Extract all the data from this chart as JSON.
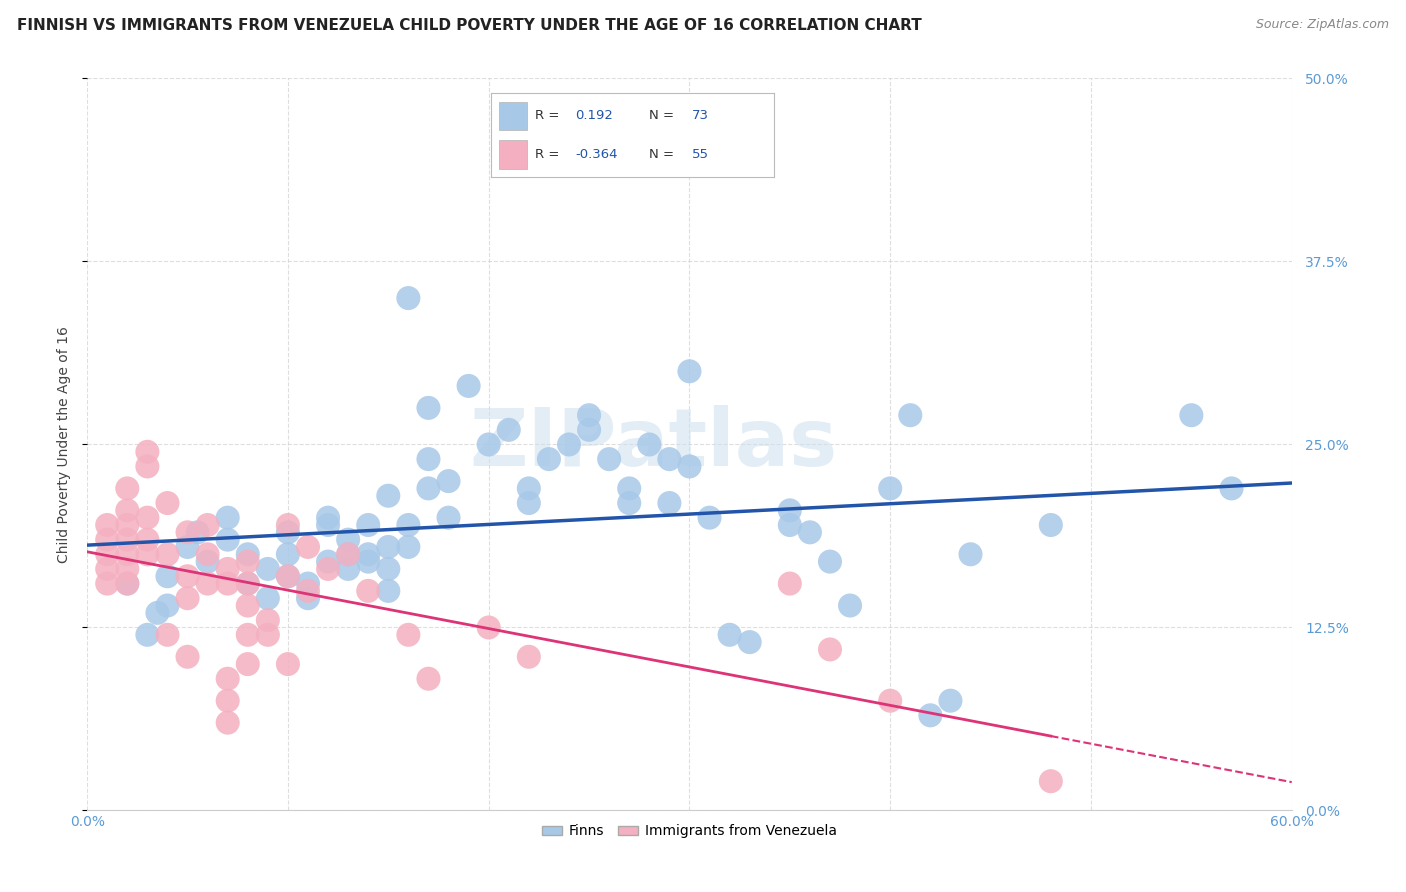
{
  "title": "FINNISH VS IMMIGRANTS FROM VENEZUELA CHILD POVERTY UNDER THE AGE OF 16 CORRELATION CHART",
  "source": "Source: ZipAtlas.com",
  "ylabel": "Child Poverty Under the Age of 16",
  "xlim": [
    0.0,
    0.6
  ],
  "ylim": [
    0.0,
    0.5
  ],
  "blue_R": 0.192,
  "blue_N": 73,
  "pink_R": -0.364,
  "pink_N": 55,
  "blue_color": "#a8c8e8",
  "pink_color": "#f4b0c0",
  "blue_line_color": "#2255aa",
  "pink_line_color": "#dd3377",
  "legend_value_color": "#2255aa",
  "right_tick_color": "#5b9bd5",
  "grid_color": "#d0d0d0",
  "background_color": "#ffffff",
  "watermark": "ZIPatlas",
  "blue_scatter": [
    [
      0.02,
      0.155
    ],
    [
      0.03,
      0.12
    ],
    [
      0.035,
      0.135
    ],
    [
      0.04,
      0.16
    ],
    [
      0.04,
      0.14
    ],
    [
      0.05,
      0.18
    ],
    [
      0.055,
      0.19
    ],
    [
      0.06,
      0.17
    ],
    [
      0.07,
      0.2
    ],
    [
      0.07,
      0.185
    ],
    [
      0.08,
      0.175
    ],
    [
      0.08,
      0.155
    ],
    [
      0.09,
      0.165
    ],
    [
      0.09,
      0.145
    ],
    [
      0.1,
      0.19
    ],
    [
      0.1,
      0.175
    ],
    [
      0.1,
      0.16
    ],
    [
      0.11,
      0.155
    ],
    [
      0.11,
      0.145
    ],
    [
      0.12,
      0.2
    ],
    [
      0.12,
      0.195
    ],
    [
      0.12,
      0.17
    ],
    [
      0.13,
      0.185
    ],
    [
      0.13,
      0.175
    ],
    [
      0.13,
      0.165
    ],
    [
      0.14,
      0.195
    ],
    [
      0.14,
      0.175
    ],
    [
      0.14,
      0.17
    ],
    [
      0.15,
      0.215
    ],
    [
      0.15,
      0.18
    ],
    [
      0.15,
      0.165
    ],
    [
      0.15,
      0.15
    ],
    [
      0.16,
      0.35
    ],
    [
      0.16,
      0.195
    ],
    [
      0.16,
      0.18
    ],
    [
      0.17,
      0.22
    ],
    [
      0.17,
      0.24
    ],
    [
      0.17,
      0.275
    ],
    [
      0.18,
      0.225
    ],
    [
      0.18,
      0.2
    ],
    [
      0.19,
      0.29
    ],
    [
      0.2,
      0.25
    ],
    [
      0.21,
      0.26
    ],
    [
      0.22,
      0.22
    ],
    [
      0.22,
      0.21
    ],
    [
      0.23,
      0.24
    ],
    [
      0.24,
      0.25
    ],
    [
      0.25,
      0.27
    ],
    [
      0.25,
      0.26
    ],
    [
      0.26,
      0.24
    ],
    [
      0.27,
      0.21
    ],
    [
      0.27,
      0.22
    ],
    [
      0.28,
      0.25
    ],
    [
      0.29,
      0.24
    ],
    [
      0.29,
      0.21
    ],
    [
      0.3,
      0.3
    ],
    [
      0.3,
      0.235
    ],
    [
      0.31,
      0.2
    ],
    [
      0.32,
      0.12
    ],
    [
      0.33,
      0.115
    ],
    [
      0.35,
      0.205
    ],
    [
      0.35,
      0.195
    ],
    [
      0.36,
      0.19
    ],
    [
      0.37,
      0.17
    ],
    [
      0.38,
      0.14
    ],
    [
      0.4,
      0.22
    ],
    [
      0.41,
      0.27
    ],
    [
      0.42,
      0.065
    ],
    [
      0.43,
      0.075
    ],
    [
      0.44,
      0.175
    ],
    [
      0.48,
      0.195
    ],
    [
      0.55,
      0.27
    ],
    [
      0.57,
      0.22
    ]
  ],
  "pink_scatter": [
    [
      0.01,
      0.195
    ],
    [
      0.01,
      0.185
    ],
    [
      0.01,
      0.175
    ],
    [
      0.01,
      0.165
    ],
    [
      0.01,
      0.155
    ],
    [
      0.02,
      0.22
    ],
    [
      0.02,
      0.205
    ],
    [
      0.02,
      0.195
    ],
    [
      0.02,
      0.185
    ],
    [
      0.02,
      0.175
    ],
    [
      0.02,
      0.165
    ],
    [
      0.02,
      0.155
    ],
    [
      0.03,
      0.245
    ],
    [
      0.03,
      0.235
    ],
    [
      0.03,
      0.2
    ],
    [
      0.03,
      0.185
    ],
    [
      0.03,
      0.175
    ],
    [
      0.04,
      0.21
    ],
    [
      0.04,
      0.175
    ],
    [
      0.04,
      0.12
    ],
    [
      0.05,
      0.19
    ],
    [
      0.05,
      0.16
    ],
    [
      0.05,
      0.145
    ],
    [
      0.05,
      0.105
    ],
    [
      0.06,
      0.195
    ],
    [
      0.06,
      0.175
    ],
    [
      0.06,
      0.155
    ],
    [
      0.07,
      0.165
    ],
    [
      0.07,
      0.155
    ],
    [
      0.07,
      0.09
    ],
    [
      0.07,
      0.075
    ],
    [
      0.07,
      0.06
    ],
    [
      0.08,
      0.17
    ],
    [
      0.08,
      0.155
    ],
    [
      0.08,
      0.14
    ],
    [
      0.08,
      0.12
    ],
    [
      0.08,
      0.1
    ],
    [
      0.09,
      0.13
    ],
    [
      0.09,
      0.12
    ],
    [
      0.1,
      0.195
    ],
    [
      0.1,
      0.16
    ],
    [
      0.1,
      0.1
    ],
    [
      0.11,
      0.18
    ],
    [
      0.11,
      0.15
    ],
    [
      0.12,
      0.165
    ],
    [
      0.13,
      0.175
    ],
    [
      0.14,
      0.15
    ],
    [
      0.16,
      0.12
    ],
    [
      0.17,
      0.09
    ],
    [
      0.2,
      0.125
    ],
    [
      0.22,
      0.105
    ],
    [
      0.35,
      0.155
    ],
    [
      0.37,
      0.11
    ],
    [
      0.4,
      0.075
    ],
    [
      0.48,
      0.02
    ]
  ],
  "title_fontsize": 11,
  "ylabel_fontsize": 10,
  "tick_fontsize": 10,
  "legend_fontsize": 10,
  "source_fontsize": 9
}
